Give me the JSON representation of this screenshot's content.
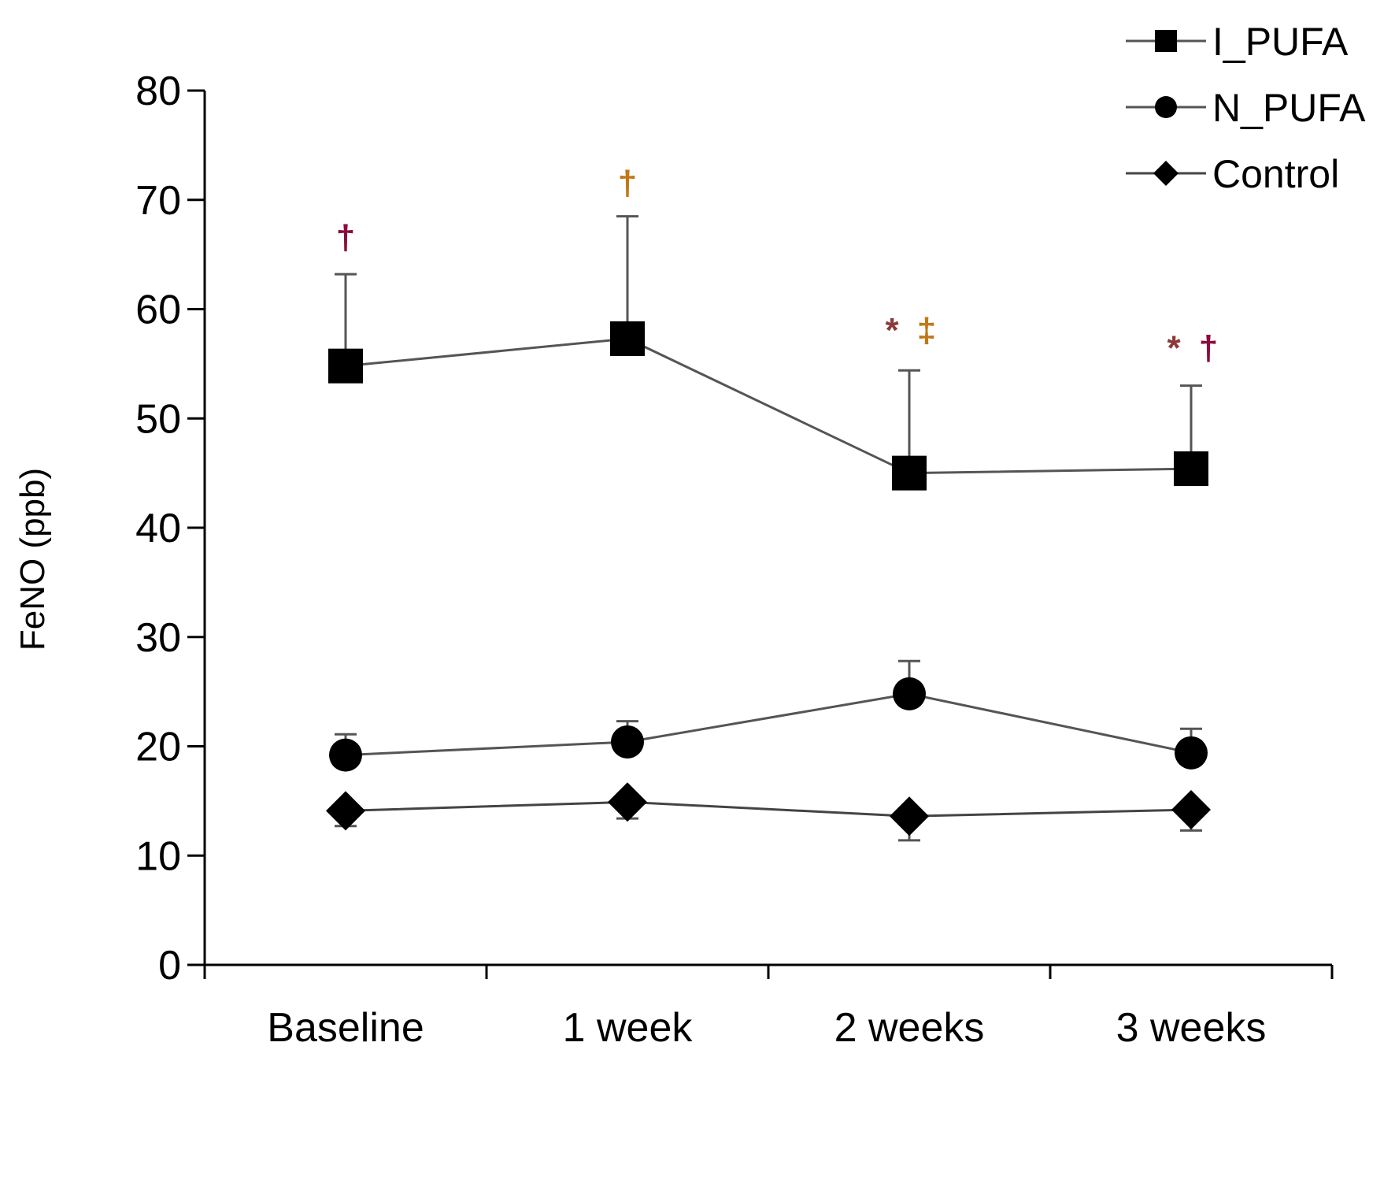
{
  "chart_data": {
    "type": "line",
    "title": "",
    "xlabel": "",
    "ylabel": "FeNO (ppb)",
    "ylim": [
      0,
      80
    ],
    "yticks": [
      0,
      10,
      20,
      30,
      40,
      50,
      60,
      70,
      80
    ],
    "categories": [
      "Baseline",
      "1 week",
      "2 weeks",
      "3 weeks"
    ],
    "grid": false,
    "legend_position": "top-right",
    "series": [
      {
        "name": "I_PUFA",
        "marker": "square",
        "color": "#000000",
        "line_color": "#555555",
        "values": [
          54.8,
          57.3,
          45.0,
          45.4
        ],
        "error_upper": [
          63.2,
          68.5,
          54.4,
          53.0
        ]
      },
      {
        "name": "N_PUFA",
        "marker": "circle",
        "color": "#000000",
        "line_color": "#555555",
        "values": [
          19.2,
          20.4,
          24.8,
          19.4
        ],
        "error_upper": [
          21.1,
          22.3,
          27.8,
          21.6
        ]
      },
      {
        "name": "Control",
        "marker": "diamond",
        "color": "#000000",
        "line_color": "#444444",
        "values": [
          14.1,
          14.9,
          13.6,
          14.2
        ],
        "error_lower": [
          12.7,
          13.4,
          11.4,
          12.3
        ]
      }
    ],
    "annotations": [
      {
        "category": "Baseline",
        "y": 65.5,
        "parts": [
          {
            "text": "†",
            "color": "#8B0A3C"
          }
        ]
      },
      {
        "category": "1 week",
        "y": 70.5,
        "parts": [
          {
            "text": "†",
            "color": "#C07818"
          }
        ]
      },
      {
        "category": "2 weeks",
        "y": 57.0,
        "parts": [
          {
            "text": "*",
            "color": "#8B3A3A"
          },
          {
            "text": "‡",
            "color": "#C07818"
          }
        ]
      },
      {
        "category": "3 weeks",
        "y": 55.4,
        "parts": [
          {
            "text": "*",
            "color": "#8B3A3A"
          },
          {
            "text": "†",
            "color": "#8B0A3C"
          }
        ]
      }
    ]
  }
}
